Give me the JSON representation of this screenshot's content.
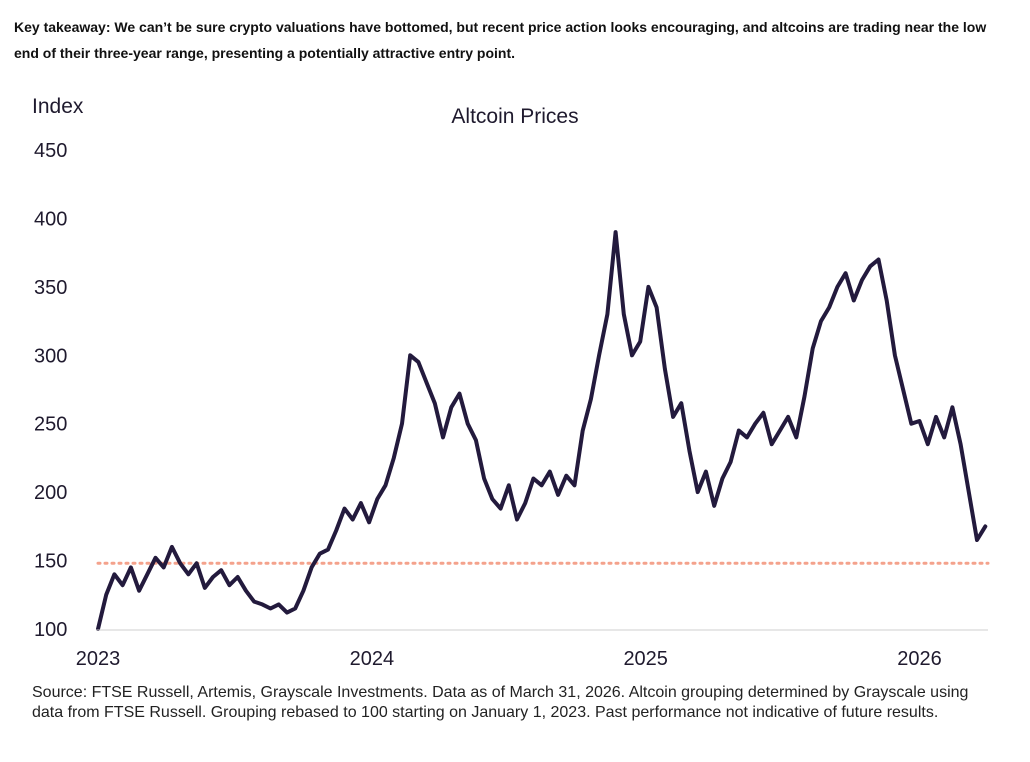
{
  "takeaway": "Key takeaway: We can’t be sure crypto valuations have bottomed, but recent price action looks encouraging, and altcoins are trading near the low end of their three-year range, presenting a potentially attractive entry point.",
  "source": "Source: FTSE Russell, Artemis, Grayscale Investments. Data as of March 31, 2026. Altcoin grouping determined by Grayscale using data from FTSE Russell. Grouping rebased to 100 starting on January 1, 2023. Past performance not indicative of future results.",
  "chart_data": {
    "type": "line",
    "title": "Altcoin Prices",
    "ylabel": "Index",
    "xlabel": "",
    "xlim": [
      2023.0,
      2026.25
    ],
    "ylim": [
      100,
      450
    ],
    "yticks": [
      100,
      150,
      200,
      250,
      300,
      350,
      400,
      450
    ],
    "xticks": [
      2023,
      2024,
      2025,
      2026
    ],
    "grid": false,
    "reference_line": {
      "y": 148,
      "style": "dotted",
      "color": "#f4a28c"
    },
    "series": [
      {
        "color": "#231a3d",
        "x": [
          2023.0,
          2023.03,
          2023.06,
          2023.09,
          2023.12,
          2023.15,
          2023.18,
          2023.21,
          2023.24,
          2023.27,
          2023.3,
          2023.33,
          2023.36,
          2023.39,
          2023.42,
          2023.45,
          2023.48,
          2023.51,
          2023.54,
          2023.57,
          2023.6,
          2023.63,
          2023.66,
          2023.69,
          2023.72,
          2023.75,
          2023.78,
          2023.81,
          2023.84,
          2023.87,
          2023.9,
          2023.93,
          2023.96,
          2023.99,
          2024.02,
          2024.05,
          2024.08,
          2024.11,
          2024.14,
          2024.17,
          2024.2,
          2024.23,
          2024.26,
          2024.29,
          2024.32,
          2024.35,
          2024.38,
          2024.41,
          2024.44,
          2024.47,
          2024.5,
          2024.53,
          2024.56,
          2024.59,
          2024.62,
          2024.65,
          2024.68,
          2024.71,
          2024.74,
          2024.77,
          2024.8,
          2024.83,
          2024.86,
          2024.89,
          2024.92,
          2024.95,
          2024.98,
          2025.01,
          2025.04,
          2025.07,
          2025.1,
          2025.13,
          2025.16,
          2025.19,
          2025.22,
          2025.25,
          2025.28,
          2025.31,
          2025.34,
          2025.37,
          2025.4,
          2025.43,
          2025.46,
          2025.49,
          2025.52,
          2025.55,
          2025.58,
          2025.61,
          2025.64,
          2025.67,
          2025.7,
          2025.73,
          2025.76,
          2025.79,
          2025.82,
          2025.85,
          2025.88,
          2025.91,
          2025.94,
          2025.97,
          2026.0,
          2026.03,
          2026.06,
          2026.09,
          2026.12,
          2026.15,
          2026.18,
          2026.21,
          2026.24
        ],
        "values": [
          100,
          125,
          140,
          132,
          145,
          128,
          140,
          152,
          145,
          160,
          148,
          140,
          148,
          130,
          138,
          143,
          132,
          138,
          128,
          120,
          118,
          115,
          118,
          112,
          115,
          128,
          145,
          155,
          158,
          172,
          188,
          180,
          192,
          178,
          195,
          205,
          225,
          250,
          300,
          295,
          280,
          265,
          240,
          262,
          272,
          250,
          238,
          210,
          195,
          188,
          205,
          180,
          192,
          210,
          205,
          215,
          198,
          212,
          205,
          245,
          268,
          300,
          330,
          390,
          330,
          300,
          310,
          350,
          335,
          290,
          255,
          265,
          230,
          200,
          215,
          190,
          210,
          222,
          245,
          240,
          250,
          258,
          235,
          245,
          255,
          240,
          270,
          305,
          325,
          335,
          350,
          360,
          340,
          355,
          365,
          370,
          340,
          300,
          275,
          250,
          252,
          235,
          255,
          240,
          262,
          235,
          200,
          165,
          175
        ]
      }
    ]
  }
}
